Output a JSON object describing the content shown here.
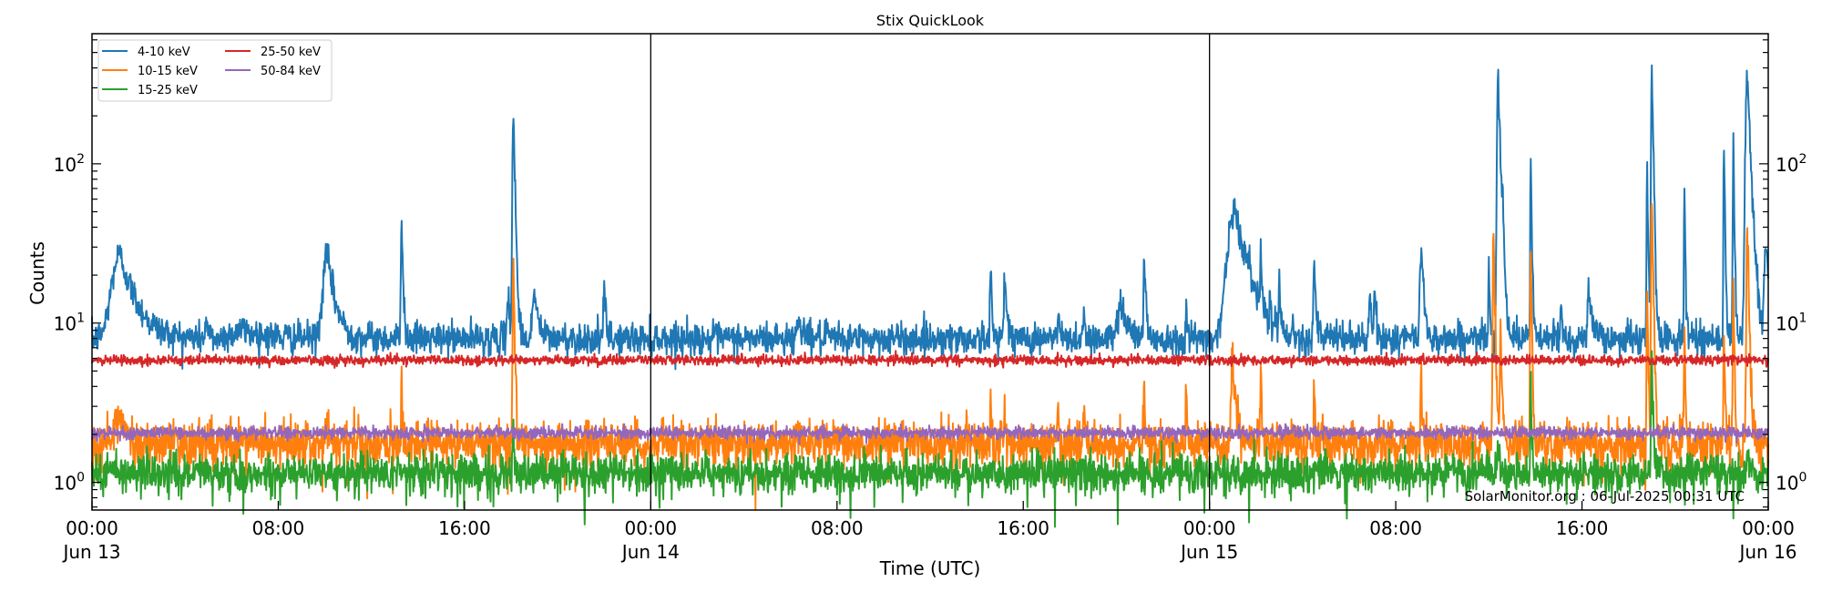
{
  "chart_data": {
    "type": "line",
    "title": "Stix QuickLook",
    "xlabel": "Time (UTC)",
    "ylabel": "Counts",
    "yscale": "log",
    "ylim": [
      0.67,
      656
    ],
    "xlim_hours": [
      0,
      72
    ],
    "x_ticks": [
      {
        "hour": 0,
        "time": "00:00",
        "date": "Jun 13"
      },
      {
        "hour": 8,
        "time": "08:00",
        "date": ""
      },
      {
        "hour": 16,
        "time": "16:00",
        "date": ""
      },
      {
        "hour": 24,
        "time": "00:00",
        "date": "Jun 14"
      },
      {
        "hour": 32,
        "time": "08:00",
        "date": ""
      },
      {
        "hour": 40,
        "time": "16:00",
        "date": ""
      },
      {
        "hour": 48,
        "time": "00:00",
        "date": "Jun 15"
      },
      {
        "hour": 56,
        "time": "08:00",
        "date": ""
      },
      {
        "hour": 64,
        "time": "16:00",
        "date": ""
      },
      {
        "hour": 72,
        "time": "00:00",
        "date": "Jun 16"
      }
    ],
    "day_boundaries_hours": [
      24,
      48
    ],
    "y_ticks": [
      {
        "value": 1,
        "label_base": "10",
        "label_exp": "0"
      },
      {
        "value": 10,
        "label_base": "10",
        "label_exp": "1"
      },
      {
        "value": 100,
        "label_base": "10",
        "label_exp": "2"
      }
    ],
    "legend": {
      "position": "upper left",
      "columns": 2,
      "entries": [
        "4-10 keV",
        "10-15 keV",
        "15-25 keV",
        "25-50 keV",
        "50-84 keV"
      ]
    },
    "series": [
      {
        "name": "4-10 keV",
        "color": "#1f77b4",
        "baseline": 8.0,
        "noise": 0.05,
        "peaks": [
          {
            "hour": 1.2,
            "value": 27,
            "width": 0.5
          },
          {
            "hour": 4.9,
            "value": 11,
            "width": 0.05
          },
          {
            "hour": 6.5,
            "value": 9,
            "width": 0.8
          },
          {
            "hour": 10.1,
            "value": 27,
            "width": 0.25
          },
          {
            "hour": 13.3,
            "value": 55,
            "width": 0.04
          },
          {
            "hour": 17.9,
            "value": 14,
            "width": 0.08
          },
          {
            "hour": 18.1,
            "value": 230,
            "width": 0.05
          },
          {
            "hour": 19.0,
            "value": 16,
            "width": 0.12
          },
          {
            "hour": 22.0,
            "value": 17,
            "width": 0.05
          },
          {
            "hour": 30.4,
            "value": 10.5,
            "width": 0.15
          },
          {
            "hour": 38.6,
            "value": 22,
            "width": 0.04
          },
          {
            "hour": 39.2,
            "value": 22,
            "width": 0.06
          },
          {
            "hour": 41.5,
            "value": 12,
            "width": 0.04
          },
          {
            "hour": 42.6,
            "value": 13,
            "width": 0.04
          },
          {
            "hour": 44.2,
            "value": 14,
            "width": 0.2
          },
          {
            "hour": 45.2,
            "value": 27,
            "width": 0.05
          },
          {
            "hour": 47.0,
            "value": 12,
            "width": 0.05
          },
          {
            "hour": 49.1,
            "value": 50,
            "width": 0.45
          },
          {
            "hour": 50.2,
            "value": 24,
            "width": 0.04
          },
          {
            "hour": 50.6,
            "value": 13,
            "width": 0.04
          },
          {
            "hour": 51.0,
            "value": 18,
            "width": 0.04
          },
          {
            "hour": 52.5,
            "value": 25,
            "width": 0.05
          },
          {
            "hour": 54.9,
            "value": 15,
            "width": 0.05
          },
          {
            "hour": 55.1,
            "value": 16,
            "width": 0.05
          },
          {
            "hour": 57.1,
            "value": 31,
            "width": 0.08
          },
          {
            "hour": 60.0,
            "value": 20,
            "width": 0.04
          },
          {
            "hour": 60.4,
            "value": 400,
            "width": 0.06
          },
          {
            "hour": 60.6,
            "value": 42,
            "width": 0.06
          },
          {
            "hour": 61.8,
            "value": 120,
            "width": 0.03
          },
          {
            "hour": 63.1,
            "value": 13,
            "width": 0.04
          },
          {
            "hour": 64.3,
            "value": 16,
            "width": 0.1
          },
          {
            "hour": 66.8,
            "value": 95,
            "width": 0.03
          },
          {
            "hour": 67.0,
            "value": 470,
            "width": 0.04
          },
          {
            "hour": 68.4,
            "value": 72,
            "width": 0.03
          },
          {
            "hour": 70.1,
            "value": 135,
            "width": 0.03
          },
          {
            "hour": 70.5,
            "value": 150,
            "width": 0.03
          },
          {
            "hour": 71.1,
            "value": 350,
            "width": 0.1
          },
          {
            "hour": 71.9,
            "value": 35,
            "width": 0.1
          }
        ]
      },
      {
        "name": "10-15 keV",
        "color": "#ff7f0e",
        "baseline": 1.75,
        "noise": 0.07,
        "peaks": [
          {
            "hour": 1.2,
            "value": 2.6,
            "width": 0.3
          },
          {
            "hour": 10.1,
            "value": 2.5,
            "width": 0.1
          },
          {
            "hour": 13.3,
            "value": 5.8,
            "width": 0.03
          },
          {
            "hour": 18.1,
            "value": 21,
            "width": 0.04
          },
          {
            "hour": 22.0,
            "value": 2.5,
            "width": 0.03
          },
          {
            "hour": 38.6,
            "value": 3.4,
            "width": 0.03
          },
          {
            "hour": 39.2,
            "value": 3.0,
            "width": 0.03
          },
          {
            "hour": 41.5,
            "value": 2.8,
            "width": 0.03
          },
          {
            "hour": 42.6,
            "value": 3.1,
            "width": 0.03
          },
          {
            "hour": 45.2,
            "value": 4.4,
            "width": 0.03
          },
          {
            "hour": 47.0,
            "value": 3.6,
            "width": 0.03
          },
          {
            "hour": 49.0,
            "value": 5.9,
            "width": 0.1
          },
          {
            "hour": 50.2,
            "value": 5.8,
            "width": 0.03
          },
          {
            "hour": 52.5,
            "value": 4.6,
            "width": 0.03
          },
          {
            "hour": 57.1,
            "value": 4.6,
            "width": 0.04
          },
          {
            "hour": 60.2,
            "value": 43,
            "width": 0.04
          },
          {
            "hour": 60.5,
            "value": 10,
            "width": 0.04
          },
          {
            "hour": 61.8,
            "value": 34,
            "width": 0.03
          },
          {
            "hour": 66.8,
            "value": 20,
            "width": 0.03
          },
          {
            "hour": 67.0,
            "value": 65,
            "width": 0.04
          },
          {
            "hour": 68.4,
            "value": 9,
            "width": 0.03
          },
          {
            "hour": 70.1,
            "value": 10,
            "width": 0.03
          },
          {
            "hour": 70.5,
            "value": 20,
            "width": 0.03
          },
          {
            "hour": 71.1,
            "value": 38,
            "width": 0.05
          }
        ]
      },
      {
        "name": "15-25 keV",
        "color": "#2ca02c",
        "baseline": 1.15,
        "noise": 0.06,
        "peaks": [
          {
            "hour": 18.1,
            "value": 2.1,
            "width": 0.04
          },
          {
            "hour": 60.4,
            "value": 2.4,
            "width": 0.04
          },
          {
            "hour": 61.8,
            "value": 4.3,
            "width": 0.03
          },
          {
            "hour": 67.0,
            "value": 6.2,
            "width": 0.04
          },
          {
            "hour": 71.1,
            "value": 2.0,
            "width": 0.04
          }
        ]
      },
      {
        "name": "25-50 keV",
        "color": "#d62728",
        "baseline": 5.85,
        "noise": 0.015,
        "peaks": []
      },
      {
        "name": "50-84 keV",
        "color": "#9467bd",
        "baseline": 2.05,
        "noise": 0.018,
        "peaks": []
      }
    ]
  },
  "watermark": "SolarMonitor.org : 06-Jul-2025 00:31 UTC"
}
